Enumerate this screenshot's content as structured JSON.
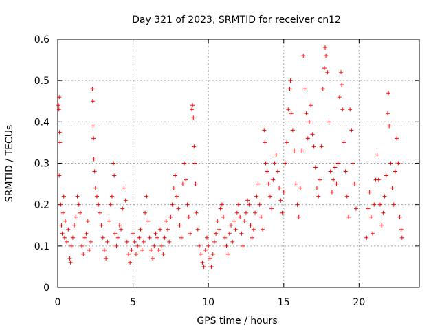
{
  "chart_data": {
    "type": "scatter",
    "title": "Day 321 of 2023, SRMTID for receiver cn12",
    "xlabel": "GPS time / hours",
    "ylabel": "SRMTID / TECUs",
    "xlim": [
      0,
      24
    ],
    "ylim": [
      0,
      0.6
    ],
    "xticks": [
      0,
      5,
      10,
      15,
      20
    ],
    "yticks": [
      0,
      0.1,
      0.2,
      0.3,
      0.4,
      0.5,
      0.6
    ],
    "xtick_labels": [
      "0",
      "5",
      "10",
      "15",
      "20"
    ],
    "ytick_labels": [
      "0",
      "0.1",
      "0.2",
      "0.3",
      "0.4",
      "0.5",
      "0.6"
    ],
    "grid": true,
    "marker": "+",
    "color": "#ff0000",
    "series": [
      {
        "name": "SRMTID",
        "points": [
          [
            0.05,
            0.44
          ],
          [
            0.08,
            0.43
          ],
          [
            0.1,
            0.46
          ],
          [
            0.12,
            0.375
          ],
          [
            0.15,
            0.35
          ],
          [
            0.1,
            0.27
          ],
          [
            0.2,
            0.2
          ],
          [
            0.25,
            0.15
          ],
          [
            0.3,
            0.13
          ],
          [
            0.35,
            0.18
          ],
          [
            0.4,
            0.22
          ],
          [
            0.45,
            0.12
          ],
          [
            0.5,
            0.16
          ],
          [
            0.6,
            0.11
          ],
          [
            0.7,
            0.14
          ],
          [
            0.8,
            0.07
          ],
          [
            0.85,
            0.06
          ],
          [
            0.9,
            0.1
          ],
          [
            1.0,
            0.12
          ],
          [
            1.1,
            0.15
          ],
          [
            1.2,
            0.17
          ],
          [
            1.3,
            0.22
          ],
          [
            1.4,
            0.2
          ],
          [
            1.5,
            0.18
          ],
          [
            1.6,
            0.1
          ],
          [
            1.7,
            0.08
          ],
          [
            1.8,
            0.12
          ],
          [
            1.9,
            0.13
          ],
          [
            2.0,
            0.16
          ],
          [
            2.1,
            0.09
          ],
          [
            2.2,
            0.11
          ],
          [
            2.3,
            0.48
          ],
          [
            2.32,
            0.45
          ],
          [
            2.35,
            0.39
          ],
          [
            2.38,
            0.36
          ],
          [
            2.4,
            0.31
          ],
          [
            2.45,
            0.28
          ],
          [
            2.5,
            0.24
          ],
          [
            2.6,
            0.22
          ],
          [
            2.7,
            0.2
          ],
          [
            2.8,
            0.18
          ],
          [
            2.9,
            0.15
          ],
          [
            3.0,
            0.12
          ],
          [
            3.1,
            0.09
          ],
          [
            3.2,
            0.07
          ],
          [
            3.3,
            0.11
          ],
          [
            3.4,
            0.16
          ],
          [
            3.5,
            0.2
          ],
          [
            3.6,
            0.22
          ],
          [
            3.7,
            0.3
          ],
          [
            3.75,
            0.27
          ],
          [
            3.8,
            0.13
          ],
          [
            3.9,
            0.1
          ],
          [
            4.0,
            0.12
          ],
          [
            4.1,
            0.15
          ],
          [
            4.2,
            0.14
          ],
          [
            4.3,
            0.19
          ],
          [
            4.4,
            0.24
          ],
          [
            4.5,
            0.21
          ],
          [
            4.6,
            0.11
          ],
          [
            4.7,
            0.08
          ],
          [
            4.8,
            0.06
          ],
          [
            4.9,
            0.09
          ],
          [
            5.0,
            0.13
          ],
          [
            5.1,
            0.11
          ],
          [
            5.2,
            0.08
          ],
          [
            5.3,
            0.1
          ],
          [
            5.4,
            0.12
          ],
          [
            5.5,
            0.14
          ],
          [
            5.6,
            0.09
          ],
          [
            5.7,
            0.11
          ],
          [
            5.8,
            0.18
          ],
          [
            5.9,
            0.22
          ],
          [
            6.0,
            0.16
          ],
          [
            6.1,
            0.12
          ],
          [
            6.2,
            0.09
          ],
          [
            6.3,
            0.07
          ],
          [
            6.4,
            0.1
          ],
          [
            6.5,
            0.13
          ],
          [
            6.6,
            0.12
          ],
          [
            6.7,
            0.09
          ],
          [
            6.8,
            0.14
          ],
          [
            6.9,
            0.1
          ],
          [
            7.0,
            0.08
          ],
          [
            7.1,
            0.12
          ],
          [
            7.2,
            0.16
          ],
          [
            7.3,
            0.14
          ],
          [
            7.4,
            0.11
          ],
          [
            7.5,
            0.17
          ],
          [
            7.6,
            0.2
          ],
          [
            7.7,
            0.24
          ],
          [
            7.8,
            0.27
          ],
          [
            7.9,
            0.22
          ],
          [
            8.0,
            0.19
          ],
          [
            8.1,
            0.15
          ],
          [
            8.2,
            0.12
          ],
          [
            8.3,
            0.25
          ],
          [
            8.4,
            0.3
          ],
          [
            8.5,
            0.26
          ],
          [
            8.6,
            0.2
          ],
          [
            8.7,
            0.17
          ],
          [
            8.8,
            0.13
          ],
          [
            8.9,
            0.43
          ],
          [
            8.95,
            0.44
          ],
          [
            9.0,
            0.41
          ],
          [
            9.05,
            0.34
          ],
          [
            9.1,
            0.3
          ],
          [
            9.15,
            0.25
          ],
          [
            9.2,
            0.18
          ],
          [
            9.3,
            0.14
          ],
          [
            9.4,
            0.1
          ],
          [
            9.5,
            0.08
          ],
          [
            9.6,
            0.06
          ],
          [
            9.7,
            0.05
          ],
          [
            9.8,
            0.09
          ],
          [
            9.9,
            0.12
          ],
          [
            10.0,
            0.1
          ],
          [
            10.1,
            0.07
          ],
          [
            10.2,
            0.05
          ],
          [
            10.3,
            0.08
          ],
          [
            10.4,
            0.11
          ],
          [
            10.5,
            0.13
          ],
          [
            10.6,
            0.16
          ],
          [
            10.7,
            0.14
          ],
          [
            10.8,
            0.19
          ],
          [
            10.9,
            0.2
          ],
          [
            11.0,
            0.17
          ],
          [
            11.1,
            0.12
          ],
          [
            11.2,
            0.1
          ],
          [
            11.3,
            0.08
          ],
          [
            11.4,
            0.13
          ],
          [
            11.5,
            0.15
          ],
          [
            11.6,
            0.11
          ],
          [
            11.7,
            0.16
          ],
          [
            11.8,
            0.14
          ],
          [
            11.9,
            0.18
          ],
          [
            12.0,
            0.2
          ],
          [
            12.1,
            0.17
          ],
          [
            12.2,
            0.13
          ],
          [
            12.3,
            0.1
          ],
          [
            12.4,
            0.16
          ],
          [
            12.5,
            0.18
          ],
          [
            12.6,
            0.21
          ],
          [
            12.7,
            0.2
          ],
          [
            12.8,
            0.15
          ],
          [
            12.9,
            0.12
          ],
          [
            13.0,
            0.14
          ],
          [
            13.1,
            0.18
          ],
          [
            13.2,
            0.22
          ],
          [
            13.3,
            0.25
          ],
          [
            13.4,
            0.2
          ],
          [
            13.5,
            0.17
          ],
          [
            13.6,
            0.14
          ],
          [
            13.7,
            0.38
          ],
          [
            13.75,
            0.35
          ],
          [
            13.8,
            0.3
          ],
          [
            13.9,
            0.28
          ],
          [
            14.0,
            0.25
          ],
          [
            14.1,
            0.22
          ],
          [
            14.2,
            0.19
          ],
          [
            14.3,
            0.26
          ],
          [
            14.4,
            0.3
          ],
          [
            14.5,
            0.32
          ],
          [
            14.6,
            0.28
          ],
          [
            14.7,
            0.24
          ],
          [
            14.8,
            0.21
          ],
          [
            14.9,
            0.18
          ],
          [
            15.0,
            0.23
          ],
          [
            15.1,
            0.3
          ],
          [
            15.2,
            0.35
          ],
          [
            15.3,
            0.43
          ],
          [
            15.4,
            0.48
          ],
          [
            15.45,
            0.5
          ],
          [
            15.5,
            0.42
          ],
          [
            15.6,
            0.38
          ],
          [
            15.7,
            0.33
          ],
          [
            15.8,
            0.25
          ],
          [
            15.9,
            0.2
          ],
          [
            16.0,
            0.17
          ],
          [
            16.1,
            0.24
          ],
          [
            16.2,
            0.33
          ],
          [
            16.3,
            0.56
          ],
          [
            16.4,
            0.48
          ],
          [
            16.5,
            0.42
          ],
          [
            16.6,
            0.36
          ],
          [
            16.7,
            0.4
          ],
          [
            16.8,
            0.44
          ],
          [
            16.9,
            0.37
          ],
          [
            17.0,
            0.34
          ],
          [
            17.1,
            0.29
          ],
          [
            17.2,
            0.24
          ],
          [
            17.3,
            0.22
          ],
          [
            17.4,
            0.26
          ],
          [
            17.5,
            0.34
          ],
          [
            17.6,
            0.48
          ],
          [
            17.7,
            0.53
          ],
          [
            17.75,
            0.58
          ],
          [
            17.8,
            0.56
          ],
          [
            17.9,
            0.52
          ],
          [
            18.0,
            0.4
          ],
          [
            18.1,
            0.28
          ],
          [
            18.2,
            0.23
          ],
          [
            18.3,
            0.26
          ],
          [
            18.4,
            0.29
          ],
          [
            18.5,
            0.25
          ],
          [
            18.6,
            0.3
          ],
          [
            18.7,
            0.46
          ],
          [
            18.8,
            0.52
          ],
          [
            18.85,
            0.49
          ],
          [
            18.9,
            0.43
          ],
          [
            19.0,
            0.35
          ],
          [
            19.1,
            0.28
          ],
          [
            19.2,
            0.22
          ],
          [
            19.3,
            0.17
          ],
          [
            19.4,
            0.43
          ],
          [
            19.5,
            0.38
          ],
          [
            19.6,
            0.3
          ],
          [
            19.7,
            0.25
          ],
          [
            19.8,
            0.19
          ],
          [
            20.5,
            0.12
          ],
          [
            20.6,
            0.19
          ],
          [
            20.7,
            0.23
          ],
          [
            20.8,
            0.17
          ],
          [
            20.9,
            0.13
          ],
          [
            21.0,
            0.2
          ],
          [
            21.1,
            0.26
          ],
          [
            21.2,
            0.32
          ],
          [
            21.3,
            0.26
          ],
          [
            21.4,
            0.2
          ],
          [
            21.5,
            0.15
          ],
          [
            21.6,
            0.18
          ],
          [
            21.7,
            0.22
          ],
          [
            21.8,
            0.27
          ],
          [
            21.9,
            0.42
          ],
          [
            21.95,
            0.47
          ],
          [
            22.0,
            0.39
          ],
          [
            22.1,
            0.3
          ],
          [
            22.2,
            0.24
          ],
          [
            22.3,
            0.2
          ],
          [
            22.4,
            0.28
          ],
          [
            22.5,
            0.36
          ],
          [
            22.6,
            0.3
          ],
          [
            22.7,
            0.17
          ],
          [
            22.8,
            0.14
          ],
          [
            22.85,
            0.12
          ]
        ]
      }
    ]
  }
}
